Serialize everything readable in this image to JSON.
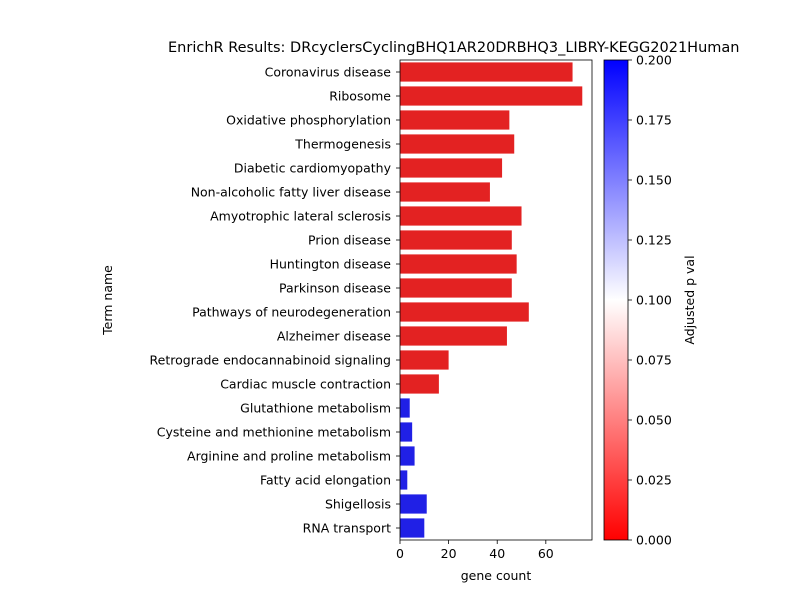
{
  "chart_data": {
    "type": "bar",
    "orientation": "horizontal",
    "title": "EnrichR Results: DRcyclersCyclingBHQ1AR20DRBHQ3_LIBRY-KEGG2021Human",
    "xlabel": "gene count",
    "ylabel": "Term name",
    "xlim": [
      0,
      79
    ],
    "xticks": [
      "0",
      "20",
      "40",
      "60"
    ],
    "categories": [
      "Coronavirus disease",
      "Ribosome",
      "Oxidative phosphorylation",
      "Thermogenesis",
      "Diabetic cardiomyopathy",
      "Non-alcoholic fatty liver disease",
      "Amyotrophic lateral sclerosis",
      "Prion disease",
      "Huntington disease",
      "Parkinson disease",
      "Pathways of neurodegeneration",
      "Alzheimer disease",
      "Retrograde endocannabinoid signaling",
      "Cardiac muscle contraction",
      "Glutathione metabolism",
      "Cysteine and methionine metabolism",
      "Arginine and proline metabolism",
      "Fatty acid elongation",
      "Shigellosis",
      "RNA transport"
    ],
    "values": [
      71,
      75,
      45,
      47,
      42,
      37,
      50,
      46,
      48,
      46,
      53,
      44,
      20,
      16,
      4,
      5,
      6,
      3,
      11,
      10
    ],
    "adjusted_p": [
      0.0,
      0.0,
      0.0,
      0.0,
      0.0,
      0.0,
      0.0,
      0.0,
      0.0,
      0.0,
      0.0,
      0.0,
      0.0,
      0.0,
      0.2,
      0.2,
      0.2,
      0.2,
      0.2,
      0.2
    ],
    "colors": {
      "bar_low_p": "#e32222",
      "bar_high_p": "#2020e6"
    },
    "colorbar": {
      "label": "Adjusted p val",
      "range": [
        0.0,
        0.2
      ],
      "ticks": [
        "0.000",
        "0.025",
        "0.050",
        "0.075",
        "0.100",
        "0.125",
        "0.150",
        "0.175",
        "0.200"
      ],
      "colors": [
        "#ff0000",
        "#ffffff",
        "#0000ff"
      ]
    }
  }
}
